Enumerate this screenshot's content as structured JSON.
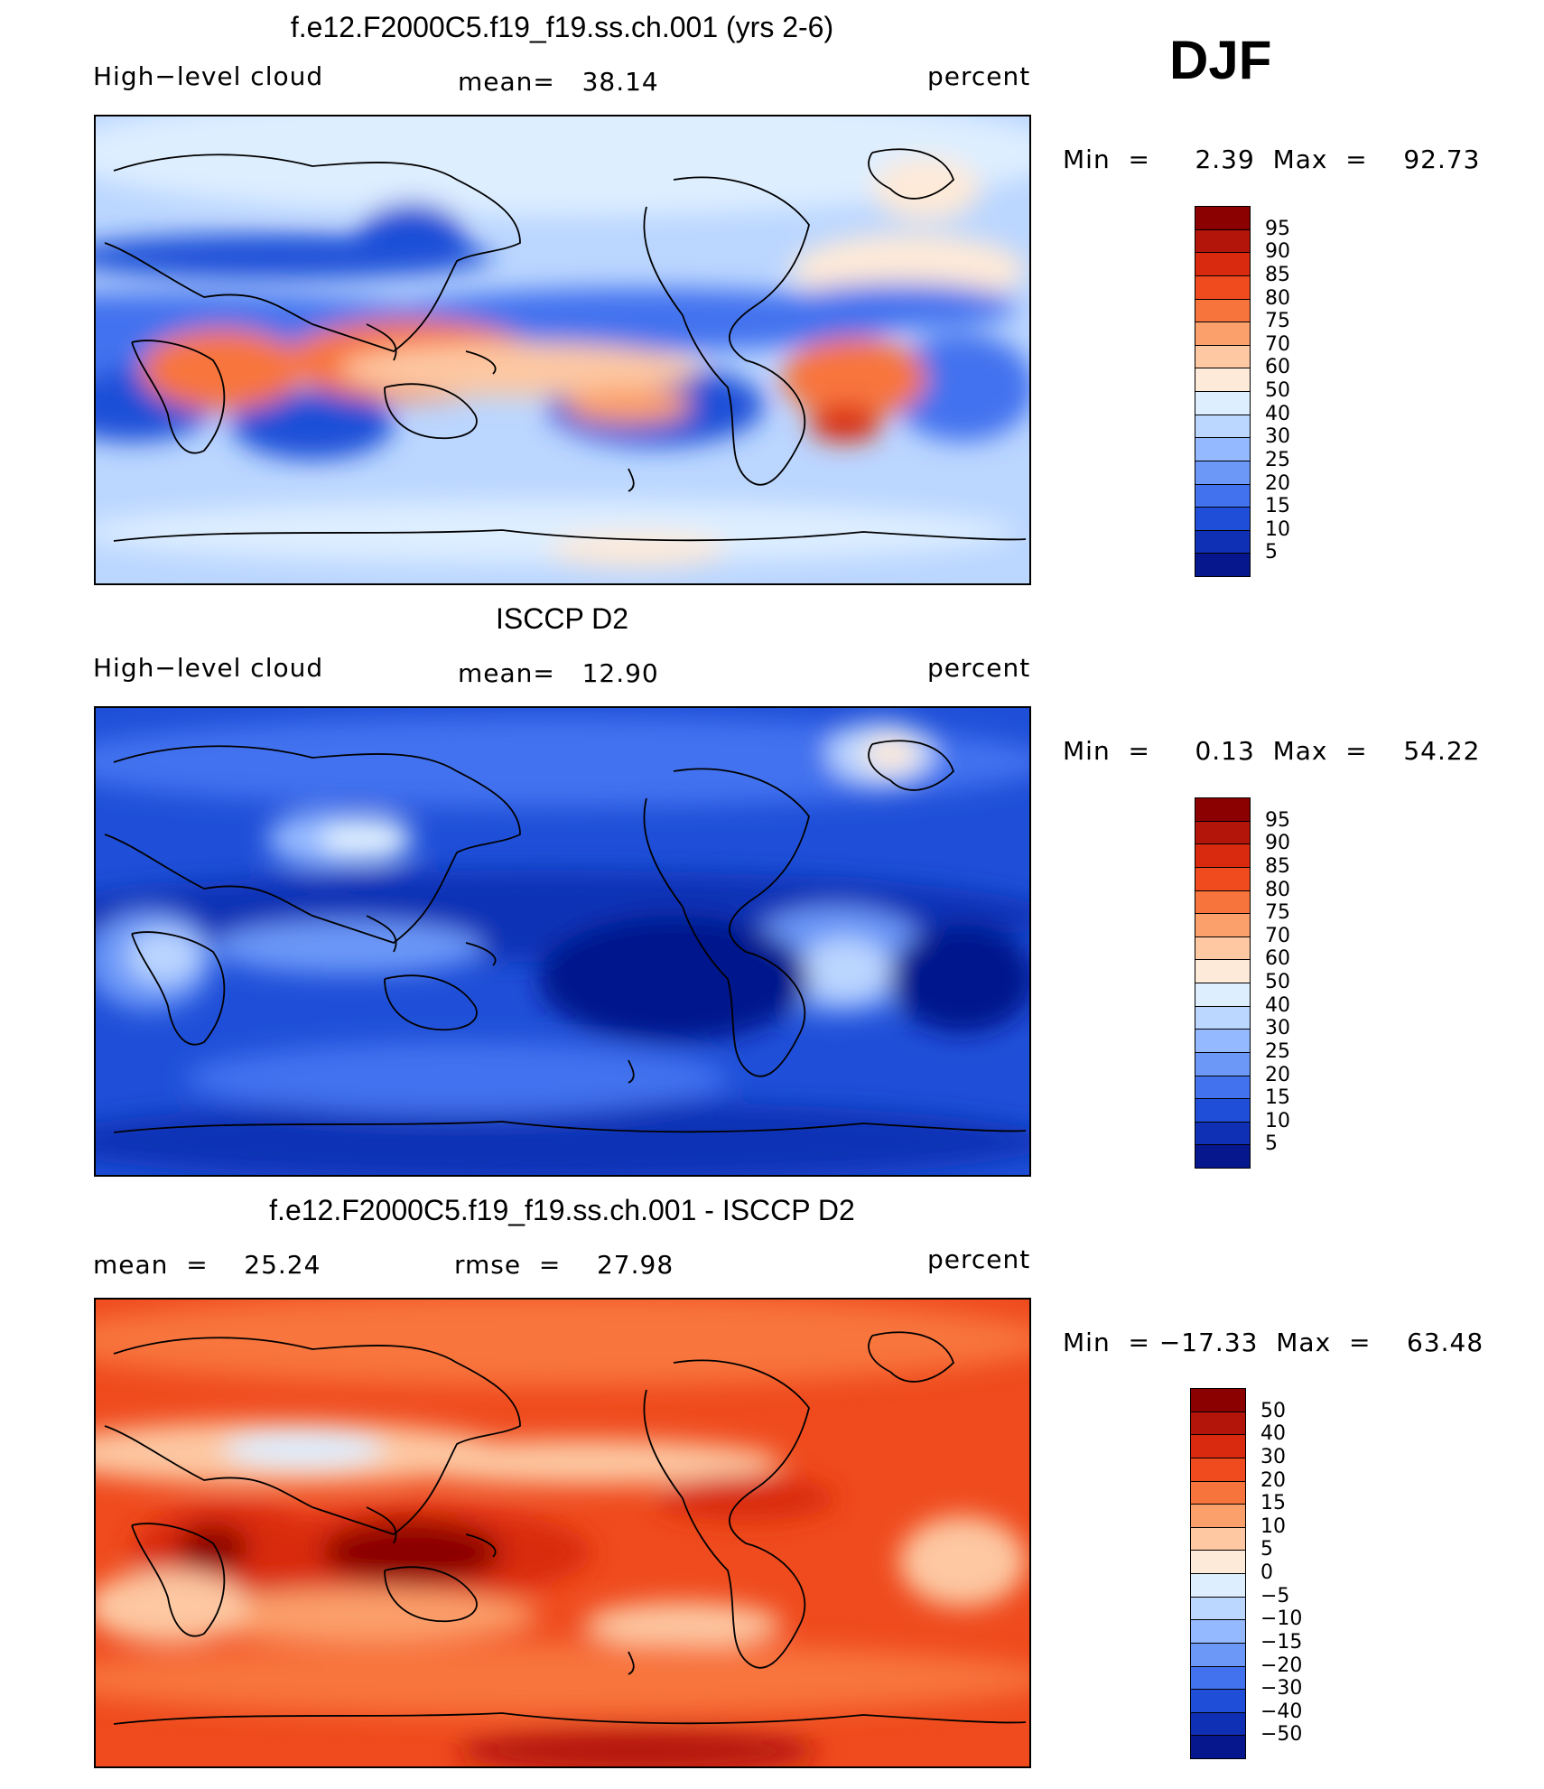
{
  "season": "DJF",
  "panels": [
    {
      "id": "model",
      "title": "f.e12.F2000C5.f19_f19.ss.ch.001 (yrs 2-6)",
      "left_label": "High−level cloud",
      "center_label": "mean=   38.14",
      "right_label": "percent",
      "minmax": "Min  =     2.39  Max  =    92.73",
      "palette": "model",
      "colorbar": {
        "ticks": [
          "95",
          "90",
          "85",
          "80",
          "75",
          "70",
          "60",
          "50",
          "40",
          "30",
          "25",
          "20",
          "15",
          "10",
          "5"
        ],
        "colors": [
          "#8b0000",
          "#b3150b",
          "#d92a10",
          "#ef4b1e",
          "#f8743d",
          "#fb9f6b",
          "#fdc8a2",
          "#feead8",
          "#ddeeff",
          "#bbd6ff",
          "#95b9ff",
          "#6c98f8",
          "#4372ef",
          "#1f4fd8",
          "#0f30b5",
          "#06168c"
        ]
      }
    },
    {
      "id": "obs",
      "title": "ISCCP D2",
      "left_label": "High−level cloud",
      "center_label": "mean=   12.90",
      "right_label": "percent",
      "minmax": "Min  =     0.13  Max  =    54.22",
      "palette": "obs",
      "colorbar": {
        "ticks": [
          "95",
          "90",
          "85",
          "80",
          "75",
          "70",
          "60",
          "50",
          "40",
          "30",
          "25",
          "20",
          "15",
          "10",
          "5"
        ],
        "colors": [
          "#8b0000",
          "#b3150b",
          "#d92a10",
          "#ef4b1e",
          "#f8743d",
          "#fb9f6b",
          "#fdc8a2",
          "#feead8",
          "#ddeeff",
          "#bbd6ff",
          "#95b9ff",
          "#6c98f8",
          "#4372ef",
          "#1f4fd8",
          "#0f30b5",
          "#06168c"
        ]
      }
    },
    {
      "id": "diff",
      "title": "f.e12.F2000C5.f19_f19.ss.ch.001 - ISCCP D2",
      "left_label": "mean  =    25.24",
      "center_label": "rmse  =    27.98",
      "right_label": "percent",
      "minmax": "Min  = −17.33  Max  =    63.48",
      "palette": "diff",
      "colorbar": {
        "ticks": [
          "50",
          "40",
          "30",
          "20",
          "15",
          "10",
          "5",
          "0",
          "−5",
          "−10",
          "−15",
          "−20",
          "−30",
          "−40",
          "−50"
        ],
        "colors": [
          "#8b0000",
          "#b3150b",
          "#d92a10",
          "#ef4b1e",
          "#f8743d",
          "#fb9f6b",
          "#fdc8a2",
          "#feead8",
          "#ddeeff",
          "#bbd6ff",
          "#95b9ff",
          "#6c98f8",
          "#4372ef",
          "#1f4fd8",
          "#0f30b5",
          "#06168c"
        ]
      }
    }
  ]
}
